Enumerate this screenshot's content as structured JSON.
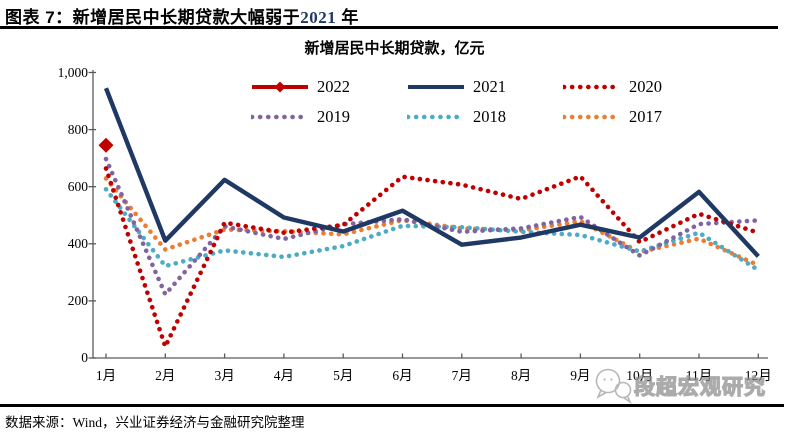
{
  "header": {
    "title_prefix": "图表 7：新增居民中长期贷款大幅弱于",
    "title_year": "2021",
    "title_suffix": " 年"
  },
  "chart_data": {
    "type": "line",
    "title": "新增居民中长期贷款，亿元",
    "ylabel": "亿元",
    "ylim": [
      0,
      1000
    ],
    "y_ticks": [
      "0",
      "200",
      "400",
      "600",
      "800",
      "1,000"
    ],
    "categories": [
      "1月",
      "2月",
      "3月",
      "4月",
      "5月",
      "6月",
      "7月",
      "8月",
      "9月",
      "10月",
      "11月",
      "12月"
    ],
    "legend_position": "top",
    "grid": false,
    "series": [
      {
        "name": "2022",
        "color": "#C00000",
        "style": "solid-diamond",
        "values": [
          745,
          null,
          null,
          null,
          null,
          null,
          null,
          null,
          null,
          null,
          null,
          null
        ]
      },
      {
        "name": "2021",
        "color": "#1F3864",
        "style": "solid",
        "values": [
          945,
          411,
          624,
          492,
          443,
          516,
          397,
          422,
          467,
          422,
          582,
          356
        ]
      },
      {
        "name": "2020",
        "color": "#C00000",
        "style": "dotted",
        "values": [
          664,
          40,
          474,
          439,
          466,
          635,
          607,
          557,
          636,
          406,
          505,
          439
        ]
      },
      {
        "name": "2019",
        "color": "#8064A2",
        "style": "dotted",
        "values": [
          697,
          223,
          461,
          417,
          468,
          486,
          442,
          454,
          494,
          359,
          469,
          482
        ]
      },
      {
        "name": "2018",
        "color": "#4BACC6",
        "style": "dotted",
        "values": [
          591,
          322,
          377,
          354,
          392,
          463,
          458,
          442,
          431,
          373,
          439,
          308
        ]
      },
      {
        "name": "2017",
        "color": "#ED7D31",
        "style": "dotted",
        "values": [
          629,
          380,
          450,
          444,
          433,
          483,
          454,
          447,
          479,
          371,
          418,
          325
        ]
      }
    ],
    "legend_rows": [
      [
        "2022",
        "2021",
        "2020"
      ],
      [
        "2019",
        "2018",
        "2017"
      ]
    ]
  },
  "footer": {
    "source": "数据来源：Wind，兴业证券经济与金融研究院整理"
  },
  "watermark": {
    "text": "段超宏观研究",
    "icon": "chat-bubble-icon"
  }
}
